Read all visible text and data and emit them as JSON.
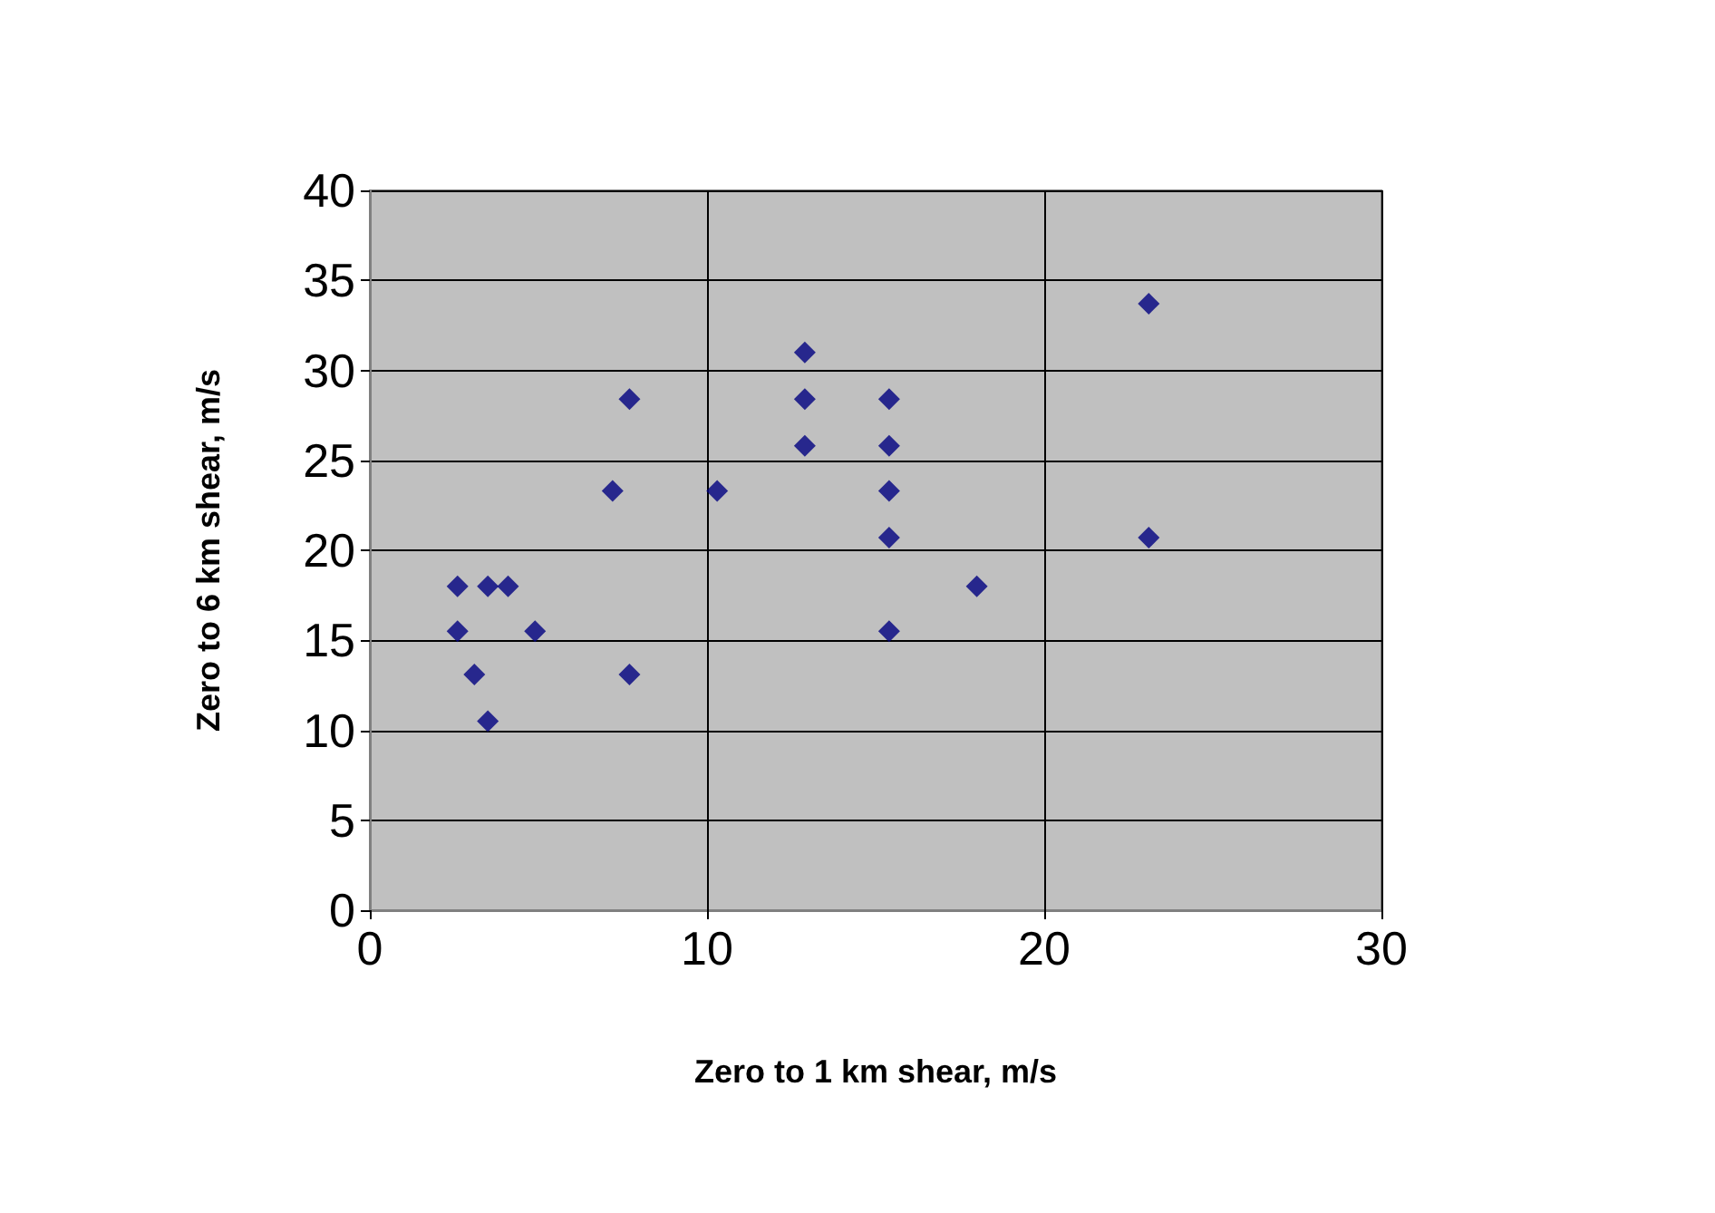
{
  "chart_data": {
    "type": "scatter",
    "xlabel": "Zero to 1 km shear, m/s",
    "ylabel": "Zero to 6 km shear, m/s",
    "x": [
      2.6,
      2.6,
      3.1,
      3.5,
      4.1,
      3.5,
      4.9,
      7.2,
      7.7,
      7.7,
      10.3,
      12.9,
      12.9,
      12.9,
      15.4,
      15.4,
      15.4,
      15.4,
      15.4,
      18.0,
      23.1,
      23.1
    ],
    "values": [
      18,
      15.5,
      13.1,
      18,
      18,
      10.5,
      15.5,
      23.3,
      28.4,
      13.1,
      23.3,
      31.0,
      28.4,
      25.8,
      28.4,
      25.8,
      23.3,
      20.7,
      15.5,
      18,
      33.7,
      20.7
    ],
    "color": "#000080",
    "marker": "diamond",
    "xlim": [
      0,
      30
    ],
    "xticks": [
      0,
      10,
      20,
      30
    ],
    "ylim": [
      0,
      40
    ],
    "yticks": [
      0,
      5,
      10,
      15,
      20,
      25,
      30,
      35,
      40
    ],
    "grid": true
  }
}
